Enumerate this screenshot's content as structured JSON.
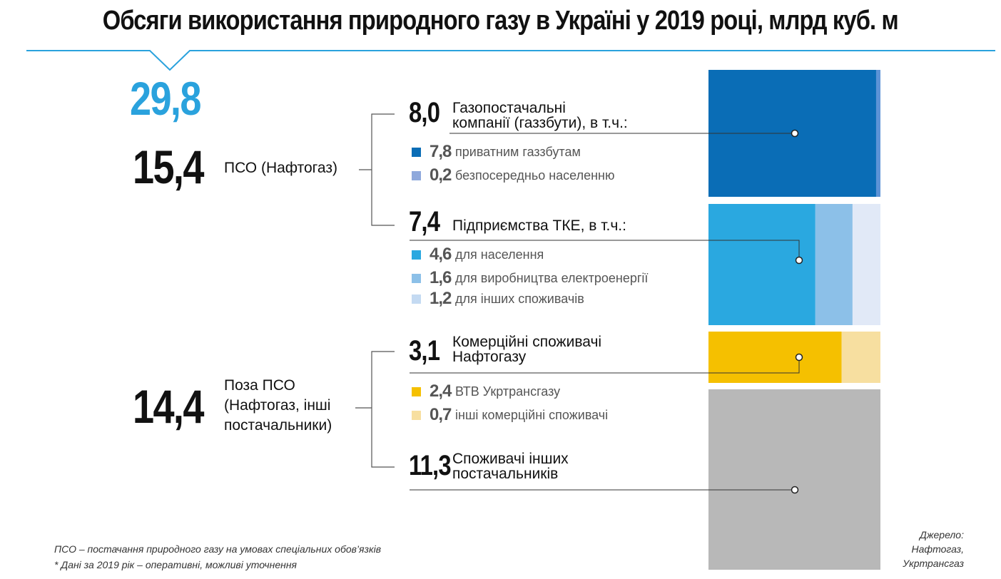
{
  "title": "Обсяги використання природного газу в Україні у 2019 році, млрд куб. м",
  "total": "29,8",
  "groups": [
    {
      "value": "15,4",
      "label": [
        "ПСО (Нафтогаз)"
      ]
    },
    {
      "value": "14,4",
      "label": [
        "Поза ПСО",
        "(Нафтогаз, інші",
        "постачальники)"
      ]
    }
  ],
  "categories": [
    {
      "value": "8,0",
      "label": [
        "Газопостачальні",
        "компанії (газзбути), в т.ч.:"
      ]
    },
    {
      "value": "7,4",
      "label": [
        "Підприємства ТКЕ, в т.ч.:"
      ]
    },
    {
      "value": "3,1",
      "label": [
        "Комерційні споживачі",
        "Нафтогазу"
      ]
    },
    {
      "value": "11,3",
      "label": [
        "Споживачі інших",
        "постачальників"
      ]
    }
  ],
  "subitems": [
    {
      "value": "7,8",
      "label": "приватним газзбутам",
      "color": "#0a6db6"
    },
    {
      "value": "0,2",
      "label": "безпосередньо населенню",
      "color": "#8fa9dc"
    },
    {
      "value": "4,6",
      "label": "для населення",
      "color": "#2aa8e0"
    },
    {
      "value": "1,6",
      "label": "для виробництва електроенергії",
      "color": "#8cc0e8"
    },
    {
      "value": "1,2",
      "label": "для інших споживачів",
      "color": "#c4daf2"
    },
    {
      "value": "2,4",
      "label": "ВТВ Укртрансгазу",
      "color": "#f5c000"
    },
    {
      "value": "0,7",
      "label": "інші комерційні споживачі",
      "color": "#f7dfa0"
    }
  ],
  "footnotes": [
    "ПСО – постачання природного газу на умовах спеціальних обов’язків",
    "* Дані за 2019 рік – оперативні, можливі уточнення"
  ],
  "source": [
    "Джерело:",
    "Нафтогаз,",
    "Укртрансгаз"
  ],
  "chart_data": {
    "type": "stacked-bar",
    "title": "Обсяги використання природного газу в Україні у 2019 році, млрд куб. м",
    "unit": "млрд куб. м",
    "total": 29.8,
    "bars": [
      {
        "name": "Газопостачальні компанії (газзбути)",
        "total": 8.0,
        "segments": [
          {
            "name": "приватним газзбутам",
            "value": 7.8,
            "color": "#0a6db6"
          },
          {
            "name": "безпосередньо населенню",
            "value": 0.2,
            "color": "#5c93d6"
          }
        ]
      },
      {
        "name": "Підприємства ТКЕ",
        "total": 7.4,
        "segments": [
          {
            "name": "для населення",
            "value": 4.6,
            "color": "#2aa8e0"
          },
          {
            "name": "для виробництва електроенергії",
            "value": 1.6,
            "color": "#8cc0e8"
          },
          {
            "name": "для інших споживачів",
            "value": 1.2,
            "color": "#e1e9f7"
          }
        ]
      },
      {
        "name": "Комерційні споживачі Нафтогазу",
        "total": 3.1,
        "segments": [
          {
            "name": "ВТВ Укртрансгазу",
            "value": 2.4,
            "color": "#f5c000"
          },
          {
            "name": "інші комерційні споживачі",
            "value": 0.7,
            "color": "#f7dfa0"
          }
        ]
      },
      {
        "name": "Споживачі інших постачальників",
        "total": 11.3,
        "segments": [
          {
            "name": "Споживачі інших постачальників",
            "value": 11.3,
            "color": "#b8b8b8"
          }
        ]
      }
    ],
    "groups": [
      {
        "name": "ПСО (Нафтогаз)",
        "value": 15.4
      },
      {
        "name": "Поза ПСО (Нафтогаз, інші постачальники)",
        "value": 14.4
      }
    ]
  }
}
